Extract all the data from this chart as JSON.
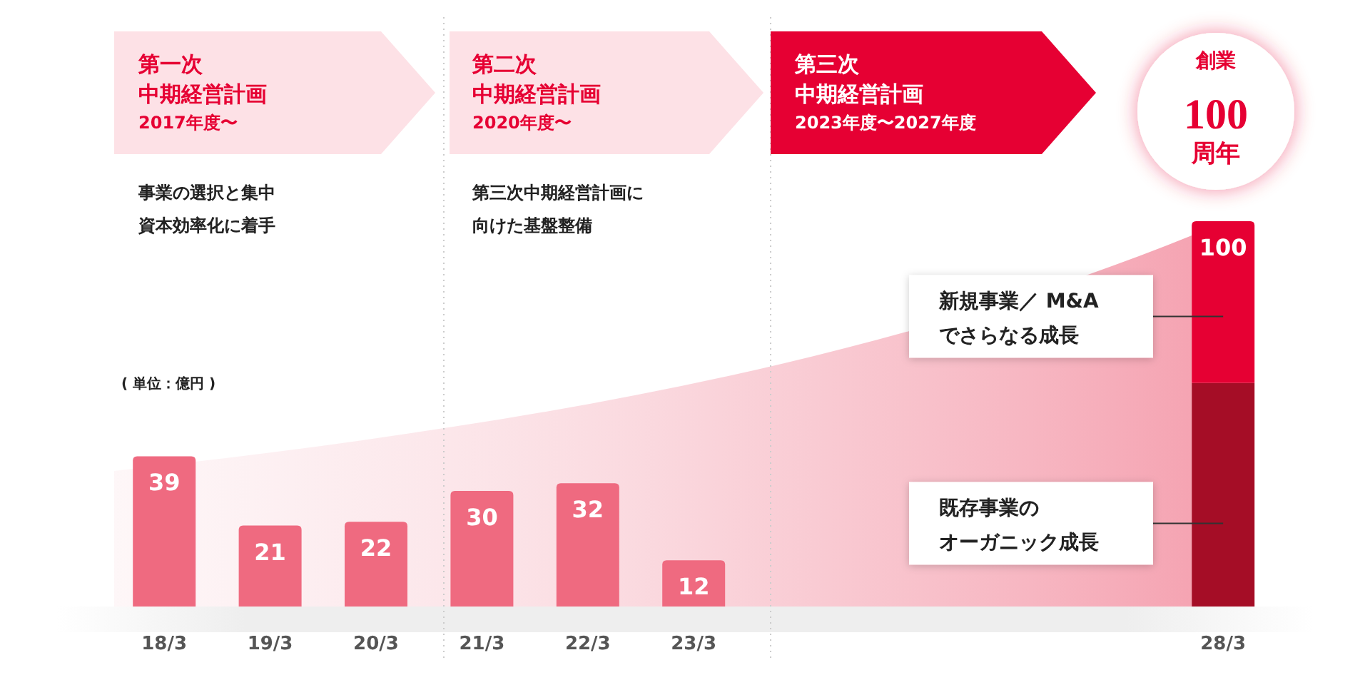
{
  "chart_data": {
    "type": "bar",
    "stacked": true,
    "categories": [
      "18/3",
      "19/3",
      "20/3",
      "21/3",
      "22/3",
      "23/3",
      null,
      null,
      null,
      null,
      "28/3"
    ],
    "series": [
      {
        "name": "既存事業のオーガニック成長",
        "colors": [
          "#ef6a80",
          "#ef6a80",
          "#ef6a80",
          "#ef6a80",
          "#ef6a80",
          "#ef6a80",
          null,
          null,
          null,
          null,
          "#a50d26"
        ],
        "values": [
          39,
          21,
          22,
          30,
          32,
          12,
          null,
          null,
          null,
          null,
          58
        ],
        "value_labels": [
          "39",
          "21",
          "22",
          "30",
          "32",
          "12",
          null,
          null,
          null,
          null,
          null
        ]
      },
      {
        "name": "新規事業／ M&Aでさらなる成長",
        "color": "#e60033",
        "values": [
          null,
          null,
          null,
          null,
          null,
          null,
          null,
          null,
          null,
          null,
          42
        ]
      }
    ],
    "totals": [
      null,
      null,
      null,
      null,
      null,
      null,
      null,
      null,
      null,
      null,
      "100"
    ],
    "annotations": [
      "第一次",
      "中期経営計画",
      "2017年度〜",
      "第二次",
      "中期経営計画",
      "2020年度〜",
      "第三次",
      "中期経営計画",
      "2023年度〜2027年度",
      "事業の選択と集中",
      "資本効率化に着手",
      "第三次中期経営計画に",
      "向けた基盤整備",
      "( 単位：億円 )",
      "創業",
      "100",
      "周年"
    ],
    "legend": false
  }
}
